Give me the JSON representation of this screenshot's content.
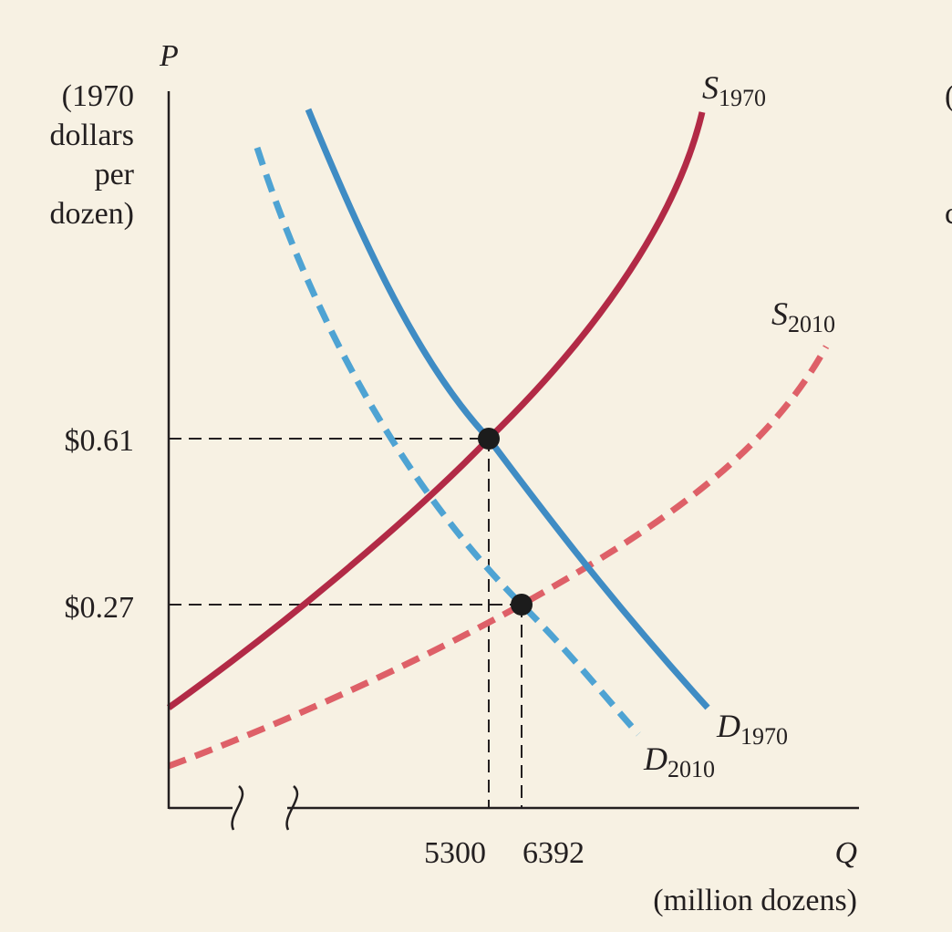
{
  "chart_data": {
    "type": "line",
    "ylabel": "P",
    "ylabel_units": [
      "(1970",
      "dollars",
      "per",
      "dozen)"
    ],
    "xlabel": "Q",
    "xlabel_units": "(million dozens)",
    "y_ticks": [
      "$0.61",
      "$0.27"
    ],
    "x_ticks": [
      "5300",
      "6392"
    ],
    "equilibria": [
      {
        "q": 5300,
        "p": 0.61
      },
      {
        "q": 6392,
        "p": 0.27
      }
    ],
    "series": [
      {
        "base": "S",
        "sub": "1970",
        "color": "#b22a46",
        "style": "solid"
      },
      {
        "base": "D",
        "sub": "1970",
        "color": "#3f8cc4",
        "style": "solid"
      },
      {
        "base": "S",
        "sub": "2010",
        "color": "#de6068",
        "style": "dashed"
      },
      {
        "base": "D",
        "sub": "2010",
        "color": "#4ea3d3",
        "style": "dashed"
      }
    ],
    "axis_break": true
  }
}
